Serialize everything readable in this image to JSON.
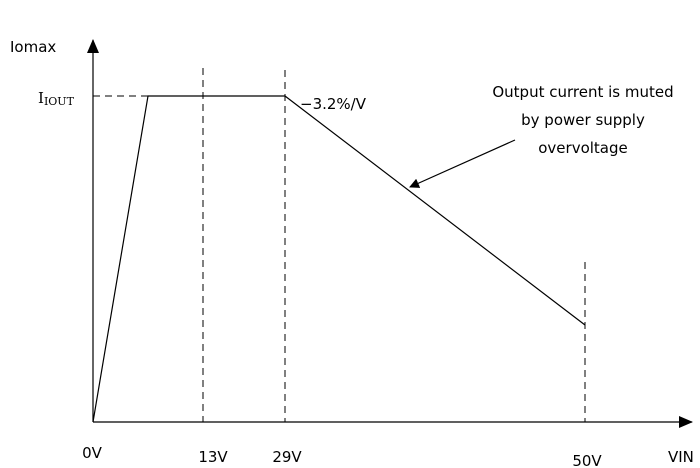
{
  "y_axis_label": "Iomax",
  "level_label": {
    "main": "I",
    "sub": "IOUT"
  },
  "slope_label": "−3.2%/V",
  "annotation": [
    "Output current is muted",
    "by power supply",
    "overvoltage"
  ],
  "x_labels": [
    "0V",
    "13V",
    "29V",
    "50V"
  ],
  "x_axis_label": "VIN"
}
